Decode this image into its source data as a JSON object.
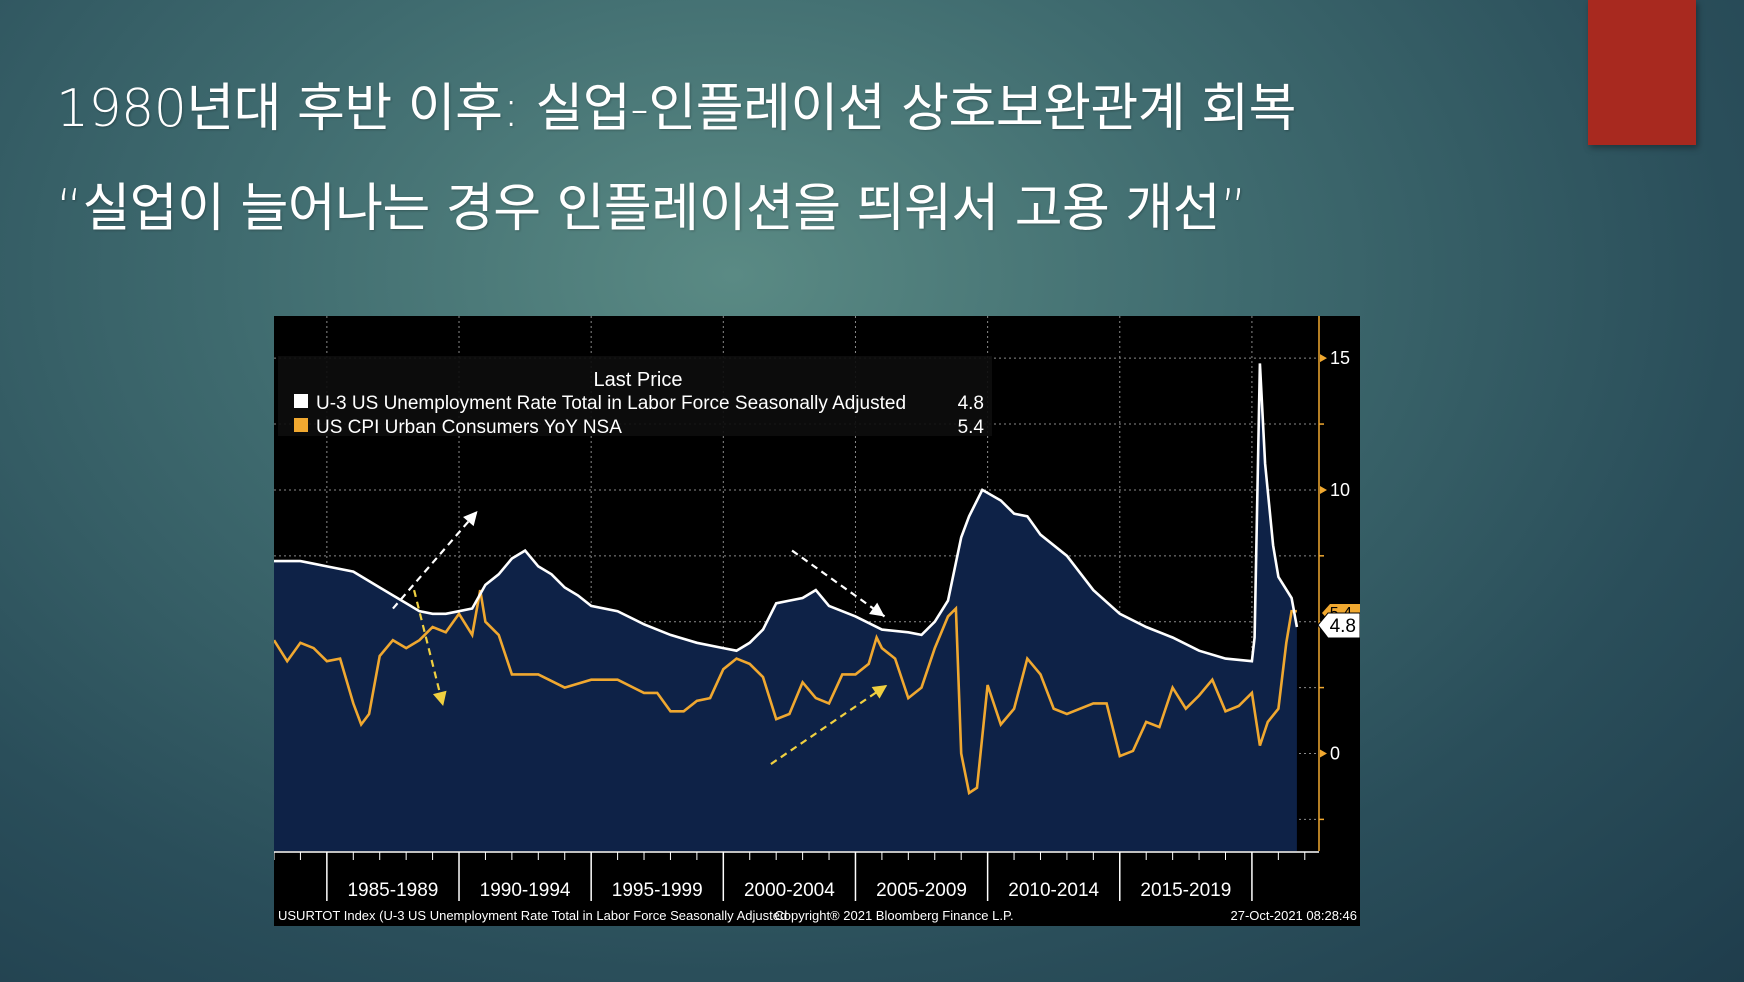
{
  "slide": {
    "title_line1": "1980년대 후반 이후: 실업-인플레이션 상호보완관계 회복",
    "title_line2": "“실업이 늘어나는 경우 인플레이션을 띄워서 고용 개선”",
    "accent_color": "#a8291f"
  },
  "chart_data": {
    "type": "line",
    "legend": {
      "header": "Last Price",
      "entries": [
        {
          "name": "U-3 US Unemployment Rate Total in Labor Force Seasonally Adjusted",
          "last": "4.8",
          "color": "#ffffff"
        },
        {
          "name": "US CPI Urban Consumers YoY NSA",
          "last": "5.4",
          "color": "#f0a830"
        }
      ]
    },
    "y_axis": {
      "min": -3.7,
      "max": 16.6,
      "ticks": [
        {
          "v": 15,
          "label": "15"
        },
        {
          "v": 10,
          "label": "10"
        },
        {
          "v": 0,
          "label": "0"
        }
      ]
    },
    "x_axis": {
      "min": 1983.0,
      "max": 2022.5,
      "ticks": [
        1985,
        1990,
        1995,
        2000,
        2005,
        2010,
        2015,
        2020
      ],
      "period_labels": [
        "1985-1989",
        "1990-1994",
        "1995-1999",
        "2000-2004",
        "2005-2009",
        "2010-2014",
        "2015-2019"
      ]
    },
    "last_value_tags": {
      "unemployment": "4.8",
      "cpi": "5.4"
    },
    "series": [
      {
        "name": "unemployment",
        "color": "#ffffff",
        "x": [
          1983.0,
          1984.0,
          1984.5,
          1985.0,
          1986.0,
          1987.0,
          1987.5,
          1988.0,
          1988.5,
          1989.0,
          1989.5,
          1990.0,
          1990.5,
          1991.0,
          1991.5,
          1992.0,
          1992.5,
          1993.0,
          1993.5,
          1994.0,
          1994.5,
          1995.0,
          1996.0,
          1997.0,
          1998.0,
          1999.0,
          2000.0,
          2000.5,
          2001.0,
          2001.5,
          2002.0,
          2002.5,
          2003.0,
          2003.5,
          2004.0,
          2005.0,
          2006.0,
          2007.0,
          2007.5,
          2008.0,
          2008.5,
          2009.0,
          2009.3,
          2009.8,
          2010.5,
          2011.0,
          2011.5,
          2012.0,
          2013.0,
          2014.0,
          2015.0,
          2016.0,
          2017.0,
          2018.0,
          2019.0,
          2020.0,
          2020.1,
          2020.3,
          2020.5,
          2020.8,
          2021.0,
          2021.5,
          2021.7
        ],
        "y": [
          7.3,
          7.3,
          7.2,
          7.1,
          6.9,
          6.3,
          6.0,
          5.7,
          5.4,
          5.3,
          5.3,
          5.4,
          5.5,
          6.4,
          6.8,
          7.4,
          7.7,
          7.1,
          6.8,
          6.3,
          6.0,
          5.6,
          5.4,
          4.9,
          4.5,
          4.2,
          4.0,
          3.9,
          4.2,
          4.7,
          5.7,
          5.8,
          5.9,
          6.2,
          5.6,
          5.2,
          4.7,
          4.6,
          4.5,
          5.0,
          5.8,
          8.2,
          9.0,
          10.0,
          9.6,
          9.1,
          9.0,
          8.3,
          7.5,
          6.2,
          5.3,
          4.8,
          4.4,
          3.9,
          3.6,
          3.5,
          4.4,
          14.8,
          11.0,
          7.9,
          6.7,
          5.9,
          4.8
        ]
      },
      {
        "name": "cpi",
        "color": "#f0a830",
        "x": [
          1983.0,
          1983.5,
          1984.0,
          1984.5,
          1985.0,
          1985.5,
          1986.0,
          1986.3,
          1986.6,
          1987.0,
          1987.5,
          1988.0,
          1988.5,
          1989.0,
          1989.5,
          1990.0,
          1990.5,
          1990.8,
          1991.0,
          1991.5,
          1992.0,
          1993.0,
          1994.0,
          1995.0,
          1996.0,
          1997.0,
          1997.5,
          1998.0,
          1998.5,
          1999.0,
          1999.5,
          2000.0,
          2000.5,
          2001.0,
          2001.5,
          2002.0,
          2002.5,
          2003.0,
          2003.5,
          2004.0,
          2004.5,
          2005.0,
          2005.5,
          2005.8,
          2006.0,
          2006.5,
          2007.0,
          2007.5,
          2008.0,
          2008.5,
          2008.8,
          2009.0,
          2009.3,
          2009.6,
          2010.0,
          2010.5,
          2011.0,
          2011.5,
          2012.0,
          2012.5,
          2013.0,
          2014.0,
          2014.5,
          2015.0,
          2015.5,
          2016.0,
          2016.5,
          2017.0,
          2017.5,
          2018.0,
          2018.5,
          2019.0,
          2019.5,
          2020.0,
          2020.3,
          2020.6,
          2021.0,
          2021.3,
          2021.5,
          2021.7
        ],
        "y": [
          4.3,
          3.5,
          4.2,
          4.0,
          3.5,
          3.6,
          1.9,
          1.1,
          1.5,
          3.7,
          4.3,
          4.0,
          4.3,
          4.8,
          4.6,
          5.3,
          4.5,
          6.2,
          5.0,
          4.5,
          3.0,
          3.0,
          2.5,
          2.8,
          2.8,
          2.3,
          2.3,
          1.6,
          1.6,
          2.0,
          2.1,
          3.2,
          3.6,
          3.4,
          2.9,
          1.3,
          1.5,
          2.7,
          2.1,
          1.9,
          3.0,
          3.0,
          3.4,
          4.4,
          4.0,
          3.6,
          2.1,
          2.5,
          4.0,
          5.2,
          5.5,
          0.0,
          -1.5,
          -1.3,
          2.6,
          1.1,
          1.7,
          3.6,
          3.0,
          1.7,
          1.5,
          1.9,
          1.9,
          -0.1,
          0.1,
          1.2,
          1.0,
          2.5,
          1.7,
          2.2,
          2.8,
          1.6,
          1.8,
          2.3,
          0.3,
          1.2,
          1.7,
          4.2,
          5.4,
          5.4
        ]
      }
    ],
    "annotations": [
      {
        "name": "white-arrow-up",
        "x1": 1987.5,
        "y1": 5.5,
        "x2": 1990.7,
        "y2": 9.2,
        "color": "#ffffff"
      },
      {
        "name": "white-arrow-down",
        "x1": 2002.6,
        "y1": 7.7,
        "x2": 2006.1,
        "y2": 5.2,
        "color": "#ffffff"
      },
      {
        "name": "yellow-arrow-down",
        "x1": 1988.3,
        "y1": 6.2,
        "x2": 1989.4,
        "y2": 1.8,
        "color": "#f0d040"
      },
      {
        "name": "yellow-arrow-up",
        "x1": 2001.8,
        "y1": -0.4,
        "x2": 2006.2,
        "y2": 2.6,
        "color": "#f0d040"
      }
    ],
    "footer": {
      "left": "USURTOT Index (U-3 US Unemployment Rate Total in Labor Force Seasonally Adjusted",
      "center": "Copyright® 2021 Bloomberg Finance L.P.",
      "right": "27-Oct-2021 08:28:46"
    }
  }
}
